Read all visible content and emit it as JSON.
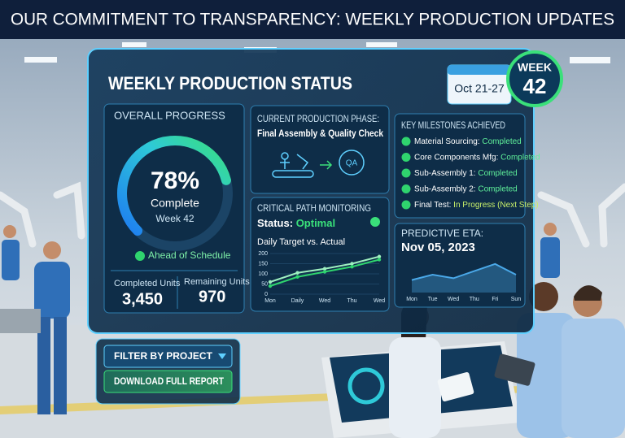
{
  "header": {
    "title": "OUR COMMITMENT TO TRANSPARENCY: WEEKLY PRODUCTION UPDATES"
  },
  "dashboard": {
    "title": "WEEKLY PRODUCTION STATUS",
    "date_range": "Oct 21-27",
    "week_badge": {
      "label": "WEEK",
      "number": "42"
    }
  },
  "overall_progress": {
    "title": "OVERALL PROGRESS",
    "gauge": {
      "value": 78,
      "label": "78%",
      "lim": [
        0,
        100
      ]
    },
    "status": "Complete",
    "week": "Week 42",
    "schedule_note": "Ahead of Schedule",
    "completed_units": {
      "label": "Completed Units",
      "value": "3,450"
    },
    "remaining_units": {
      "label": "Remaining Units",
      "value": "970"
    }
  },
  "production_phase": {
    "title": "CURRENT PRODUCTION PHASE:",
    "phase": "Final Assembly & Quality Check",
    "badge": "QA"
  },
  "critical_path": {
    "title": "CRITICAL PATH MONITORING",
    "status_label": "Status:",
    "status_value": "Optimal",
    "chart": {
      "type": "line",
      "title": "Daily Target vs. Actual",
      "categories": [
        "Mon",
        "Daily",
        "Wed",
        "Thu",
        "Wed"
      ],
      "series": [
        {
          "color": "#9ef0c0",
          "values": [
            60,
            105,
            125,
            150,
            185
          ]
        },
        {
          "color": "#2fd46e",
          "values": [
            40,
            85,
            110,
            135,
            170
          ]
        }
      ],
      "ylim": [
        0,
        200
      ],
      "yticks": [
        0,
        50,
        100,
        150,
        200
      ]
    }
  },
  "milestones": {
    "title": "KEY MILESTONES ACHIEVED",
    "items": [
      {
        "label": "Material Sourcing:",
        "status": "Completed"
      },
      {
        "label": "Core Components Mfg:",
        "status": "Completed"
      },
      {
        "label": "Sub-Assembly 1:",
        "status": "Completed"
      },
      {
        "label": "Sub-Assembly 2:",
        "status": "Completed"
      },
      {
        "label": "Final Test:",
        "status": "In Progress (Next Step)"
      }
    ]
  },
  "predictive_eta": {
    "title": "PREDICTIVE ETA:",
    "date": "Nov 05, 2023",
    "chart": {
      "type": "area",
      "categories": [
        "Mon",
        "Tue",
        "Wed",
        "Thu",
        "Fri",
        "Sun"
      ],
      "series": [
        {
          "color": "#4aa8e8",
          "values": [
            35,
            50,
            40,
            60,
            80,
            50
          ]
        }
      ],
      "ylim": [
        0,
        100
      ]
    }
  },
  "controls": {
    "filter": "FILTER BY PROJECT",
    "download": "DOWNLOAD FULL REPORT"
  }
}
